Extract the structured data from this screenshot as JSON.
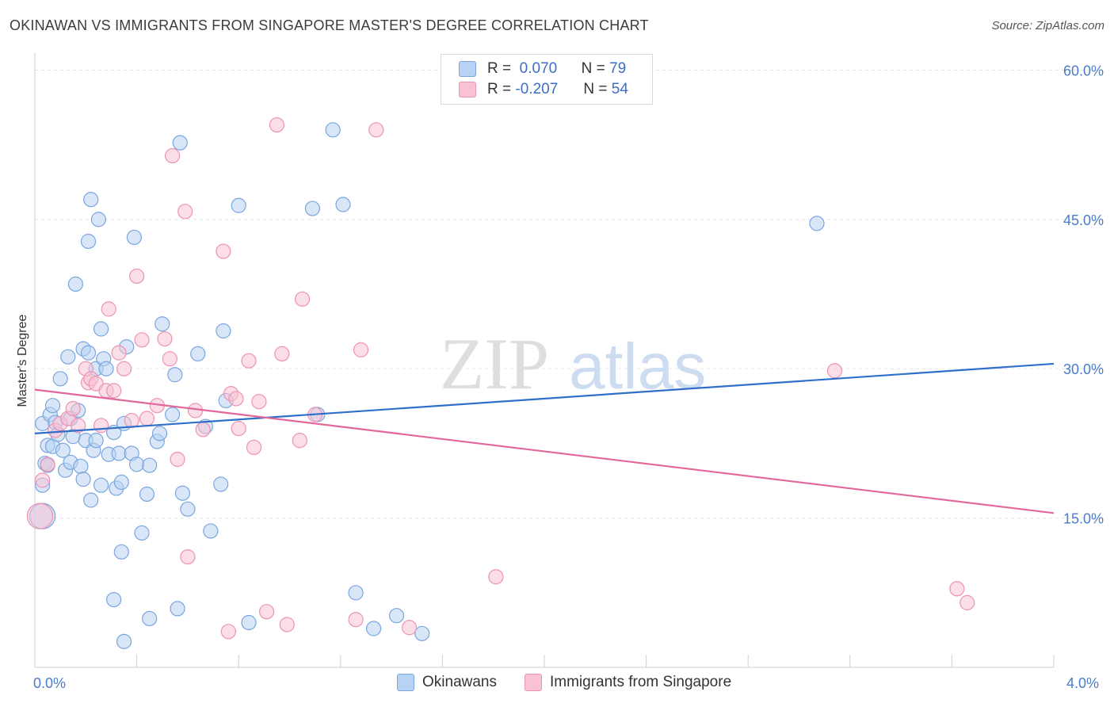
{
  "title": "OKINAWAN VS IMMIGRANTS FROM SINGAPORE MASTER'S DEGREE CORRELATION CHART",
  "source": "Source: ZipAtlas.com",
  "watermark": {
    "zip": "ZIP",
    "atlas": "atlas"
  },
  "legend": {
    "r_label": "R =",
    "n_label": "N =",
    "series": [
      {
        "r": "0.070",
        "n": "79"
      },
      {
        "r": "-0.207",
        "n": "54"
      }
    ]
  },
  "colors": {
    "blue_fill": "#b8d2f3",
    "blue_stroke": "#7aa6de",
    "blue_line": "#2f6fca",
    "pink_fill": "#f8c2d4",
    "pink_stroke": "#ec93b3",
    "pink_line": "#e2679a",
    "tick": "#4a7cc9",
    "grid": "#e3e3e3"
  },
  "chart_data": {
    "type": "scatter",
    "title": "OKINAWAN VS IMMIGRANTS FROM SINGAPORE MASTER'S DEGREE CORRELATION CHART",
    "xlabel": "",
    "ylabel": "Master's Degree",
    "xlim": [
      0,
      4.0
    ],
    "ylim": [
      0,
      60
    ],
    "x_tick_labels": [
      "0.0%",
      "4.0%"
    ],
    "y_ticks": [
      15,
      30,
      45,
      60
    ],
    "y_tick_labels": [
      "15.0%",
      "30.0%",
      "45.0%",
      "60.0%"
    ],
    "grid": true,
    "legend_position": "top-center",
    "series": [
      {
        "name": "Okinawans",
        "color": "#b8d2f3",
        "trend": {
          "x": [
            0,
            4.0
          ],
          "y": [
            23.5,
            30.5
          ]
        },
        "points": [
          [
            0.03,
            24.5
          ],
          [
            0.04,
            20.5
          ],
          [
            0.05,
            22.3
          ],
          [
            0.06,
            25.4
          ],
          [
            0.07,
            26.3
          ],
          [
            0.07,
            22.2
          ],
          [
            0.08,
            24.6
          ],
          [
            0.09,
            23.4
          ],
          [
            0.1,
            29.0
          ],
          [
            0.11,
            21.8
          ],
          [
            0.12,
            19.8
          ],
          [
            0.13,
            31.2
          ],
          [
            0.14,
            25.0
          ],
          [
            0.14,
            20.6
          ],
          [
            0.15,
            23.2
          ],
          [
            0.16,
            38.5
          ],
          [
            0.17,
            25.8
          ],
          [
            0.18,
            20.2
          ],
          [
            0.19,
            32.0
          ],
          [
            0.19,
            18.9
          ],
          [
            0.2,
            22.8
          ],
          [
            0.21,
            31.6
          ],
          [
            0.21,
            42.8
          ],
          [
            0.22,
            16.8
          ],
          [
            0.22,
            47.0
          ],
          [
            0.23,
            21.8
          ],
          [
            0.24,
            30.0
          ],
          [
            0.24,
            22.8
          ],
          [
            0.25,
            45.0
          ],
          [
            0.26,
            34.0
          ],
          [
            0.26,
            18.3
          ],
          [
            0.27,
            31.0
          ],
          [
            0.28,
            30.0
          ],
          [
            0.29,
            21.4
          ],
          [
            0.31,
            23.6
          ],
          [
            0.32,
            18.0
          ],
          [
            0.33,
            21.5
          ],
          [
            0.34,
            18.6
          ],
          [
            0.34,
            11.6
          ],
          [
            0.35,
            24.5
          ],
          [
            0.36,
            32.2
          ],
          [
            0.38,
            21.5
          ],
          [
            0.39,
            43.2
          ],
          [
            0.4,
            20.4
          ],
          [
            0.42,
            13.5
          ],
          [
            0.44,
            17.4
          ],
          [
            0.45,
            20.3
          ],
          [
            0.48,
            22.7
          ],
          [
            0.49,
            23.5
          ],
          [
            0.5,
            34.5
          ],
          [
            0.54,
            25.4
          ],
          [
            0.55,
            29.4
          ],
          [
            0.57,
            52.7
          ],
          [
            0.58,
            17.5
          ],
          [
            0.6,
            15.9
          ],
          [
            0.64,
            31.5
          ],
          [
            0.67,
            24.2
          ],
          [
            0.69,
            13.7
          ],
          [
            0.73,
            18.4
          ],
          [
            0.74,
            33.8
          ],
          [
            0.75,
            26.8
          ],
          [
            0.8,
            46.4
          ],
          [
            0.84,
            4.5
          ],
          [
            1.09,
            46.1
          ],
          [
            1.11,
            25.4
          ],
          [
            1.17,
            54.0
          ],
          [
            1.21,
            46.5
          ],
          [
            1.26,
            7.5
          ],
          [
            1.33,
            3.9
          ],
          [
            1.42,
            5.2
          ],
          [
            1.52,
            3.4
          ],
          [
            3.07,
            44.6
          ],
          [
            0.03,
            18.3
          ],
          [
            0.03,
            15.2
          ],
          [
            0.31,
            6.8
          ],
          [
            0.35,
            2.6
          ],
          [
            0.45,
            4.9
          ],
          [
            0.56,
            5.9
          ],
          [
            0.05,
            20.3
          ]
        ]
      },
      {
        "name": "Immigrants from Singapore",
        "color": "#f8c2d4",
        "trend": {
          "x": [
            0,
            4.0
          ],
          "y": [
            27.9,
            15.5
          ]
        },
        "points": [
          [
            0.02,
            15.2
          ],
          [
            0.03,
            18.8
          ],
          [
            0.05,
            20.4
          ],
          [
            0.08,
            23.8
          ],
          [
            0.1,
            24.5
          ],
          [
            0.13,
            25.0
          ],
          [
            0.15,
            26.0
          ],
          [
            0.17,
            24.3
          ],
          [
            0.2,
            30.0
          ],
          [
            0.21,
            28.6
          ],
          [
            0.22,
            29.0
          ],
          [
            0.24,
            28.5
          ],
          [
            0.26,
            24.3
          ],
          [
            0.28,
            27.8
          ],
          [
            0.29,
            36.0
          ],
          [
            0.31,
            27.8
          ],
          [
            0.33,
            31.6
          ],
          [
            0.35,
            30.0
          ],
          [
            0.38,
            24.8
          ],
          [
            0.4,
            39.3
          ],
          [
            0.42,
            32.9
          ],
          [
            0.44,
            25.0
          ],
          [
            0.48,
            26.3
          ],
          [
            0.51,
            33.0
          ],
          [
            0.53,
            31.0
          ],
          [
            0.54,
            51.4
          ],
          [
            0.56,
            20.9
          ],
          [
            0.59,
            45.8
          ],
          [
            0.6,
            11.1
          ],
          [
            0.63,
            25.8
          ],
          [
            0.66,
            23.9
          ],
          [
            0.74,
            41.8
          ],
          [
            0.76,
            3.6
          ],
          [
            0.77,
            27.5
          ],
          [
            0.79,
            27.0
          ],
          [
            0.8,
            24.0
          ],
          [
            0.84,
            30.8
          ],
          [
            0.86,
            22.1
          ],
          [
            0.88,
            26.7
          ],
          [
            0.91,
            5.6
          ],
          [
            0.95,
            54.5
          ],
          [
            0.97,
            31.5
          ],
          [
            0.99,
            4.3
          ],
          [
            1.04,
            22.8
          ],
          [
            1.05,
            37.0
          ],
          [
            1.1,
            25.4
          ],
          [
            1.26,
            4.8
          ],
          [
            1.28,
            31.9
          ],
          [
            1.34,
            54.0
          ],
          [
            1.47,
            4.0
          ],
          [
            1.81,
            9.1
          ],
          [
            3.14,
            29.8
          ],
          [
            3.62,
            7.9
          ],
          [
            3.66,
            6.5
          ]
        ]
      }
    ]
  },
  "bottom_legend": [
    "Okinawans",
    "Immigrants from Singapore"
  ]
}
